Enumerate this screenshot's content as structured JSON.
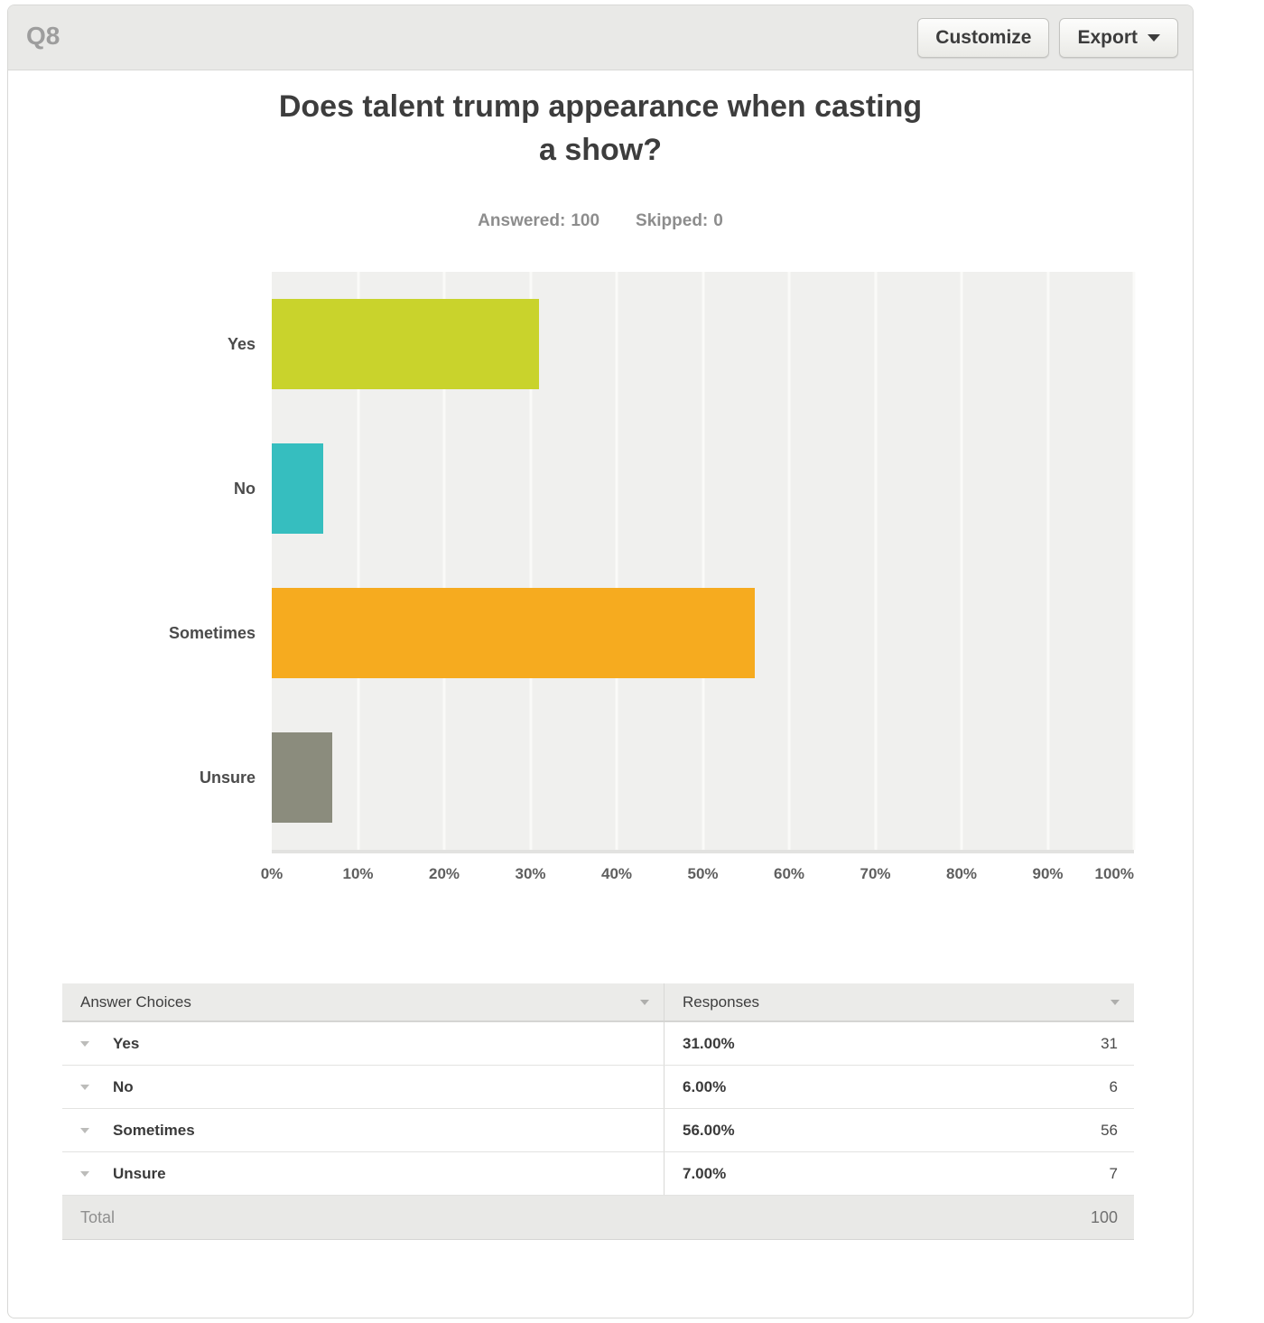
{
  "panel": {
    "question_number": "Q8"
  },
  "toolbar": {
    "customize_label": "Customize",
    "export_label": "Export"
  },
  "title": {
    "line1": "Does talent trump appearance when casting",
    "line2": "a show?"
  },
  "stats": {
    "answered_label": "Answered:",
    "answered_value": "100",
    "skipped_label": "Skipped:",
    "skipped_value": "0"
  },
  "chart_data": {
    "type": "bar",
    "orientation": "horizontal",
    "title": "Does talent trump appearance when casting a show?",
    "answered": 100,
    "skipped": 0,
    "categories": [
      "Yes",
      "No",
      "Sometimes",
      "Unsure"
    ],
    "values": [
      31,
      6,
      56,
      7
    ],
    "value_labels": [
      "31.00%",
      "6.00%",
      "56.00%",
      "7.00%"
    ],
    "bar_colors": [
      "#c9d32c",
      "#36bebf",
      "#f6ab1f",
      "#8b8c7d"
    ],
    "x_ticks": [
      "0%",
      "10%",
      "20%",
      "30%",
      "40%",
      "50%",
      "60%",
      "70%",
      "80%",
      "90%",
      "100%"
    ],
    "xlim": [
      0,
      100
    ],
    "grid": true,
    "plot_background": "#f0f0ee",
    "legend": "none"
  },
  "table": {
    "column_headers": [
      "Answer Choices",
      "Responses"
    ],
    "rows": [
      {
        "label": "Yes",
        "percent": "31.00%",
        "count": "31"
      },
      {
        "label": "No",
        "percent": "6.00%",
        "count": "6"
      },
      {
        "label": "Sometimes",
        "percent": "56.00%",
        "count": "56"
      },
      {
        "label": "Unsure",
        "percent": "7.00%",
        "count": "7"
      }
    ],
    "total_label": "Total",
    "total_value": "100"
  }
}
